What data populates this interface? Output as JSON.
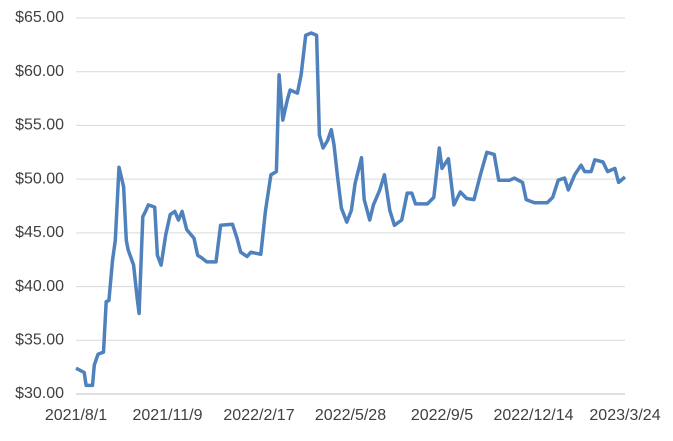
{
  "chart_data": {
    "type": "line",
    "x": [
      "2021/8/1",
      "2021/8/10",
      "2021/8/12",
      "2021/8/19",
      "2021/8/21",
      "2021/8/25",
      "2021/8/31",
      "2021/9/3",
      "2021/9/6",
      "2021/9/10",
      "2021/9/13",
      "2021/9/17",
      "2021/9/22",
      "2021/9/25",
      "2021/9/27",
      "2021/10/3",
      "2021/10/7",
      "2021/10/9",
      "2021/10/13",
      "2021/10/16",
      "2021/10/19",
      "2021/10/26",
      "2021/10/29",
      "2021/11/2",
      "2021/11/7",
      "2021/11/12",
      "2021/11/17",
      "2021/11/21",
      "2021/11/25",
      "2021/11/30",
      "2021/12/8",
      "2021/12/12",
      "2021/12/16",
      "2021/12/22",
      "2022/1/1",
      "2022/1/6",
      "2022/1/19",
      "2022/1/24",
      "2022/1/28",
      "2022/2/4",
      "2022/2/8",
      "2022/2/19",
      "2022/2/24",
      "2022/3/2",
      "2022/3/8",
      "2022/3/11",
      "2022/3/15",
      "2022/3/20",
      "2022/3/23",
      "2022/3/31",
      "2022/4/4",
      "2022/4/9",
      "2022/4/15",
      "2022/4/21",
      "2022/4/24",
      "2022/4/28",
      "2022/5/3",
      "2022/5/7",
      "2022/5/10",
      "2022/5/14",
      "2022/5/18",
      "2022/5/24",
      "2022/5/29",
      "2022/6/2",
      "2022/6/9",
      "2022/6/12",
      "2022/6/18",
      "2022/6/22",
      "2022/6/29",
      "2022/7/4",
      "2022/7/10",
      "2022/7/15",
      "2022/7/23",
      "2022/7/29",
      "2022/8/3",
      "2022/8/7",
      "2022/8/20",
      "2022/8/27",
      "2022/9/2",
      "2022/9/5",
      "2022/9/12",
      "2022/9/18",
      "2022/9/25",
      "2022/10/2",
      "2022/10/10",
      "2022/10/17",
      "2022/10/24",
      "2022/11/1",
      "2022/11/6",
      "2022/11/18",
      "2022/11/23",
      "2022/12/2",
      "2022/12/6",
      "2022/12/15",
      "2022/12/29",
      "2023/1/4",
      "2023/1/10",
      "2023/1/17",
      "2023/1/21",
      "2023/1/28",
      "2023/2/4",
      "2023/2/8",
      "2023/2/15",
      "2023/2/19",
      "2023/2/28",
      "2023/3/5",
      "2023/3/13",
      "2023/3/17",
      "2023/3/24"
    ],
    "series": [
      {
        "color": "#4f81bd",
        "values": [
          32.4,
          32.0,
          30.8,
          30.8,
          32.7,
          33.7,
          33.9,
          38.6,
          38.7,
          42.5,
          44.3,
          51.1,
          49.3,
          44.3,
          43.4,
          42.0,
          38.8,
          37.5,
          46.5,
          47.0,
          47.6,
          47.4,
          42.9,
          42.0,
          44.8,
          46.7,
          47.0,
          46.2,
          47.0,
          45.3,
          44.5,
          42.9,
          42.7,
          42.3,
          42.3,
          45.7,
          45.8,
          44.5,
          43.2,
          42.8,
          43.2,
          43.0,
          47.0,
          50.4,
          50.7,
          59.7,
          55.5,
          57.4,
          58.3,
          58.0,
          59.7,
          63.4,
          63.6,
          63.4,
          54.1,
          52.9,
          53.6,
          54.6,
          53.2,
          50.1,
          47.3,
          46.0,
          47.1,
          49.6,
          52.0,
          48.1,
          46.2,
          47.6,
          49.0,
          50.4,
          47.1,
          45.7,
          46.2,
          48.7,
          48.7,
          47.7,
          47.7,
          48.3,
          52.9,
          51.0,
          51.9,
          47.6,
          48.8,
          48.2,
          48.1,
          50.4,
          52.5,
          52.3,
          49.9,
          49.9,
          50.1,
          49.7,
          48.1,
          47.8,
          47.8,
          48.3,
          49.9,
          50.1,
          49.0,
          50.4,
          51.3,
          50.7,
          50.7,
          51.8,
          51.6,
          50.7,
          51.0,
          49.7,
          50.2
        ]
      }
    ],
    "xlim": [
      "2021/8/1",
      "2023/3/24"
    ],
    "xticks": [
      "2021/8/1",
      "2021/11/9",
      "2022/2/17",
      "2022/5/28",
      "2022/9/5",
      "2022/12/14",
      "2023/3/24"
    ],
    "ylim": [
      30,
      65
    ],
    "yticks": [
      {
        "value": 30,
        "label": "$30.00"
      },
      {
        "value": 35,
        "label": "$35.00"
      },
      {
        "value": 40,
        "label": "$40.00"
      },
      {
        "value": 45,
        "label": "$45.00"
      },
      {
        "value": 50,
        "label": "$50.00"
      },
      {
        "value": 55,
        "label": "$55.00"
      },
      {
        "value": 60,
        "label": "$60.00"
      },
      {
        "value": 65,
        "label": "$65.00"
      }
    ],
    "grid": true
  }
}
